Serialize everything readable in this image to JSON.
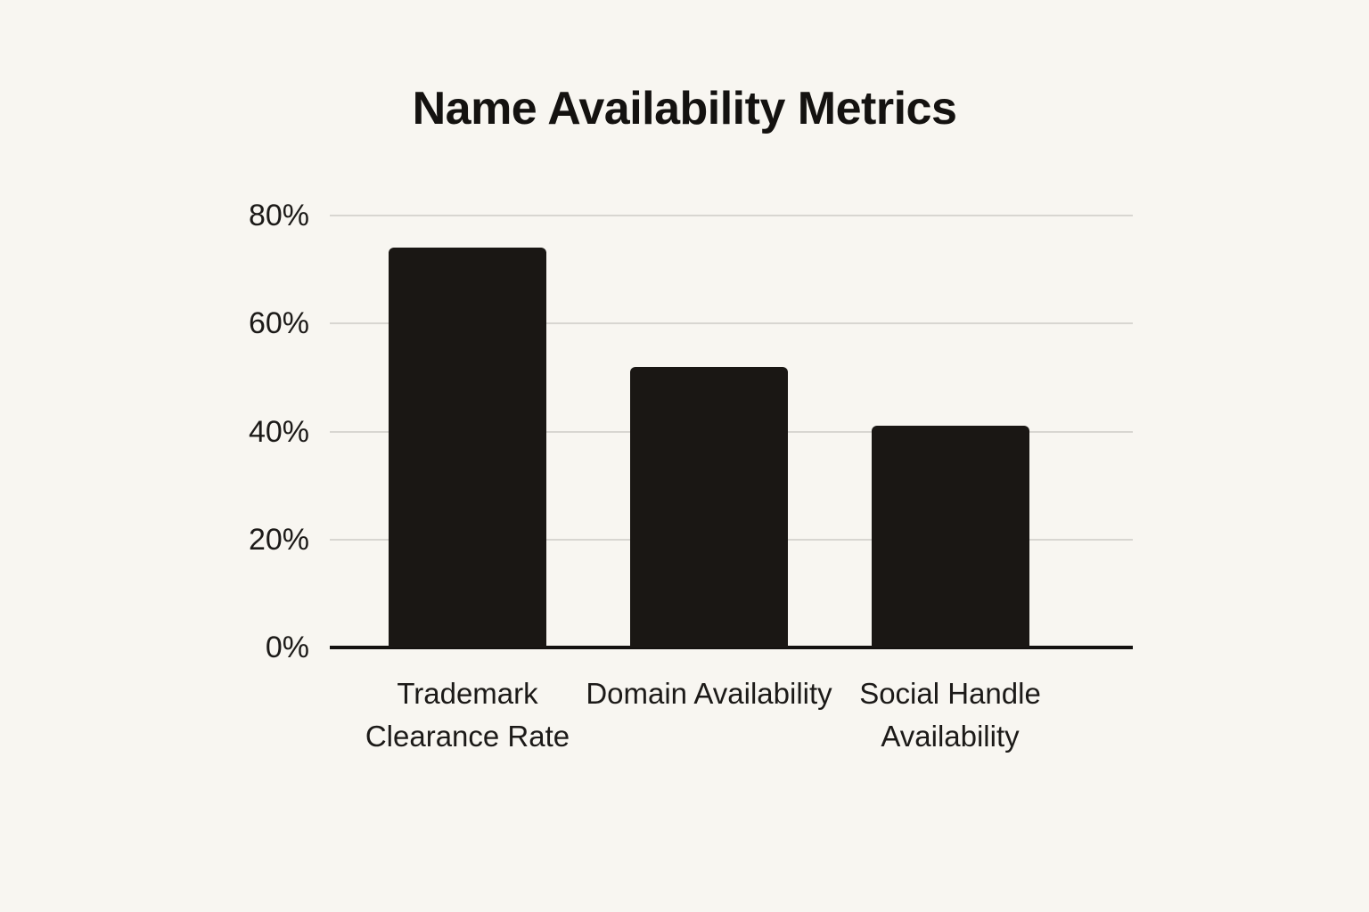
{
  "chart_data": {
    "type": "bar",
    "title": "Name Availability Metrics",
    "categories": [
      "Trademark Clearance Rate",
      "Domain Availability",
      "Social Handle Availability"
    ],
    "values": [
      74,
      52,
      41
    ],
    "xlabel": "",
    "ylabel": "",
    "ylim": [
      0,
      80
    ],
    "ytick_values": [
      0,
      20,
      40,
      60,
      80
    ],
    "ytick_labels": [
      "0%",
      "20%",
      "40%",
      "60%",
      "80%"
    ],
    "grid": true,
    "legend": "none",
    "colors": {
      "background": "#f8f6f1",
      "bar": "#1a1714",
      "gridline": "#d8d6d1",
      "axis": "#141210",
      "text": "#1c1a18"
    }
  }
}
